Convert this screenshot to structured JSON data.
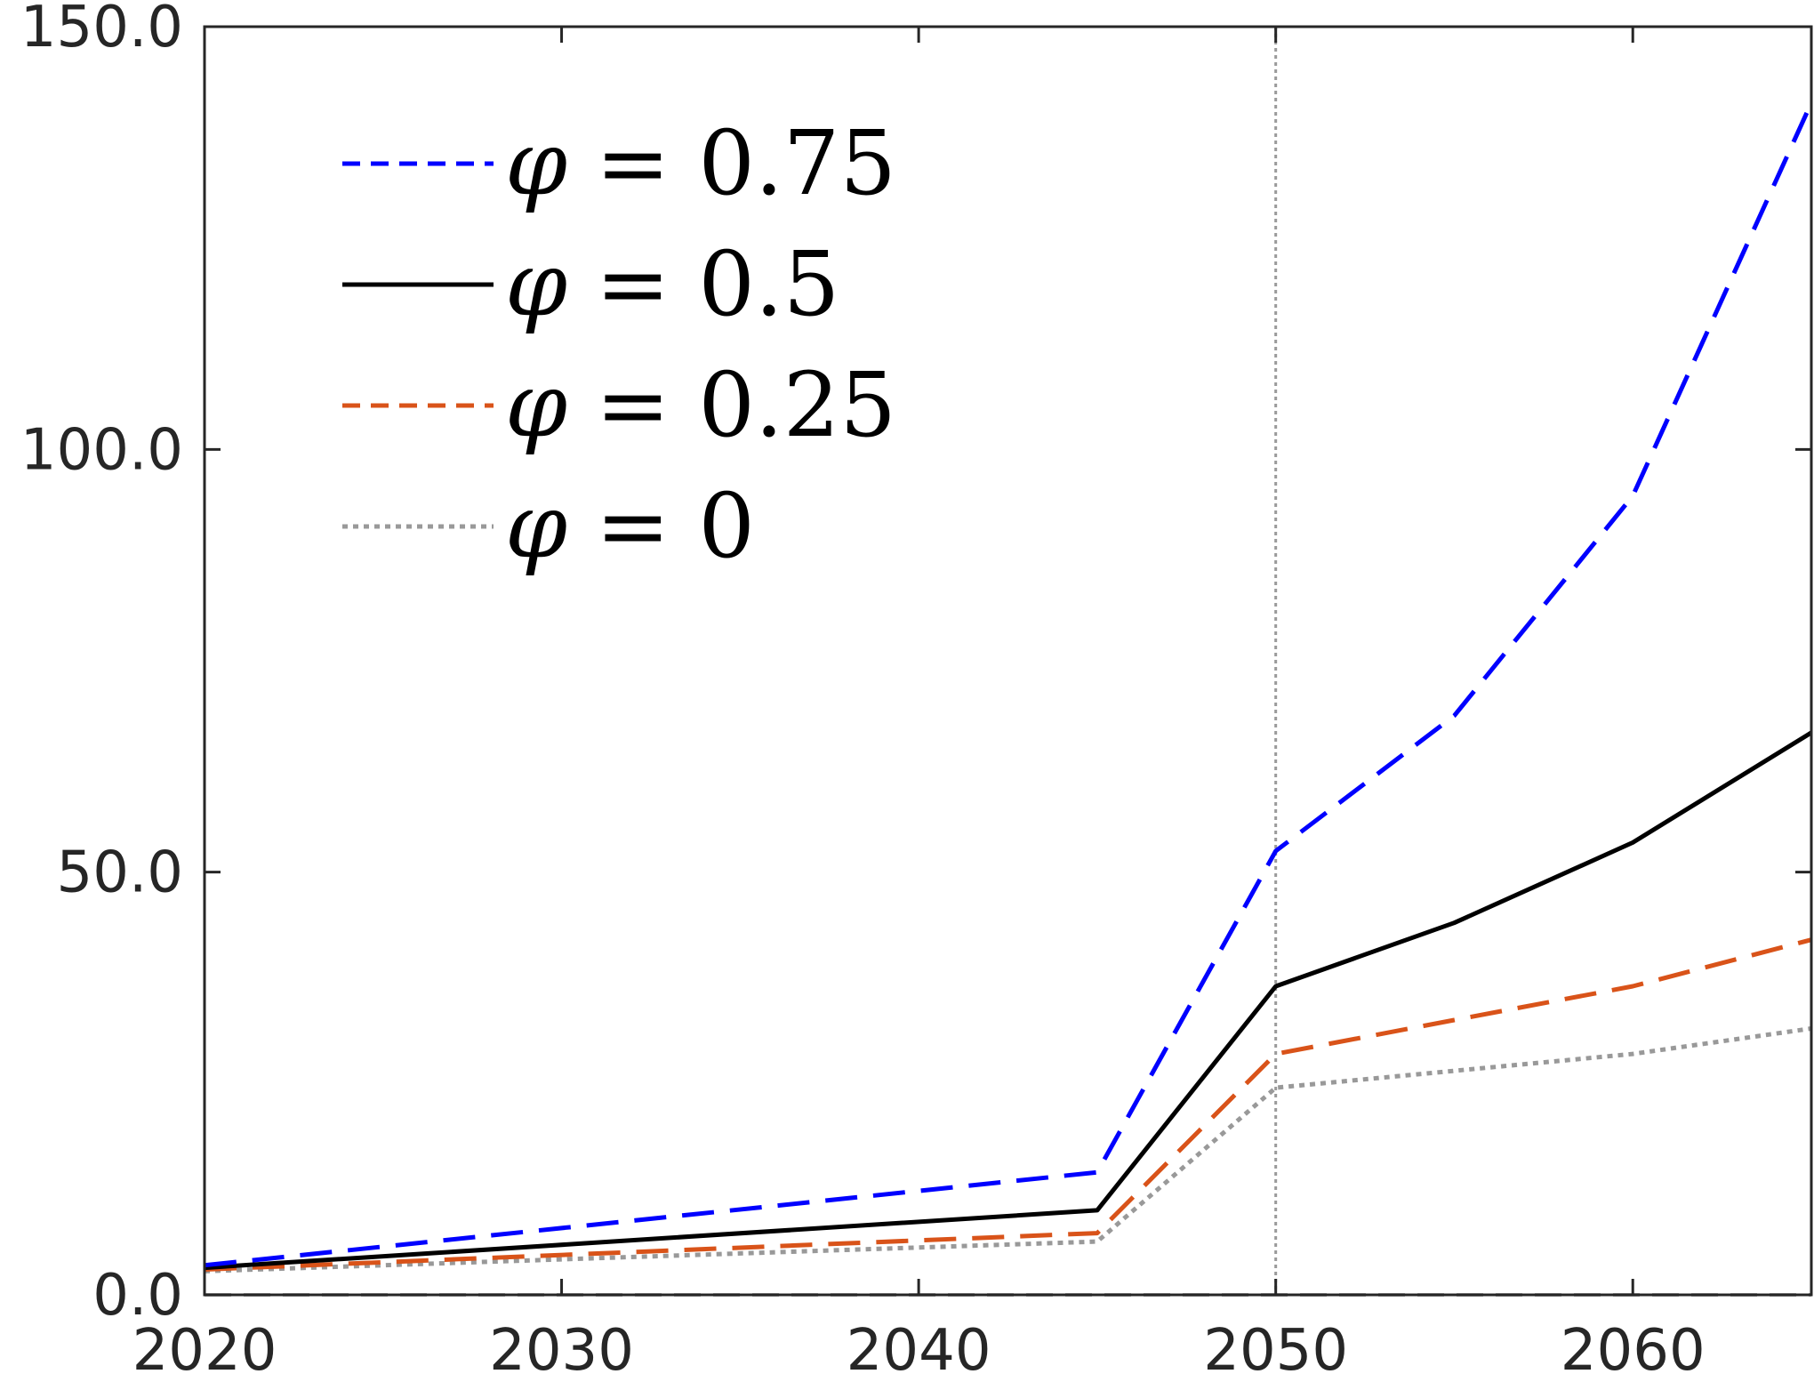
{
  "chart_data": {
    "type": "line",
    "title": "",
    "xlabel": "",
    "ylabel": "",
    "xlim": [
      2020,
      2065
    ],
    "ylim": [
      0,
      150
    ],
    "xticks": [
      2020,
      2030,
      2040,
      2050,
      2060
    ],
    "xtick_labels": [
      "2020",
      "2030",
      "2040",
      "2050",
      "2060"
    ],
    "yticks": [
      0,
      50,
      100,
      150
    ],
    "ytick_labels": [
      "0.0",
      "50.0",
      "100.0",
      "150.0"
    ],
    "grid": false,
    "reference_line_x": 2050,
    "legend_position": "top-left",
    "x": [
      2020,
      2045,
      2050,
      2055,
      2060,
      2065
    ],
    "series": [
      {
        "name": "φ = 0.75",
        "legend_symbol": "φ",
        "legend_value": "= 0.75",
        "color": "#0000ff",
        "style": "dashed",
        "values": [
          3.5,
          14.5,
          52.5,
          68.5,
          94.5,
          141
        ]
      },
      {
        "name": "φ = 0.5",
        "legend_symbol": "φ",
        "legend_value": "= 0.5",
        "color": "#000000",
        "style": "solid",
        "values": [
          3.2,
          10,
          36.5,
          44,
          53.5,
          66.5
        ]
      },
      {
        "name": "φ = 0.25",
        "legend_symbol": "φ",
        "legend_value": "= 0.25",
        "color": "#d95319",
        "style": "dashed",
        "values": [
          3,
          7.3,
          28.5,
          32.5,
          36.5,
          42
        ]
      },
      {
        "name": "φ = 0",
        "legend_symbol": "φ",
        "legend_value": "= 0",
        "color": "#999999",
        "style": "dotted",
        "values": [
          2.8,
          6.3,
          24.5,
          26.5,
          28.5,
          31.5
        ]
      }
    ]
  }
}
